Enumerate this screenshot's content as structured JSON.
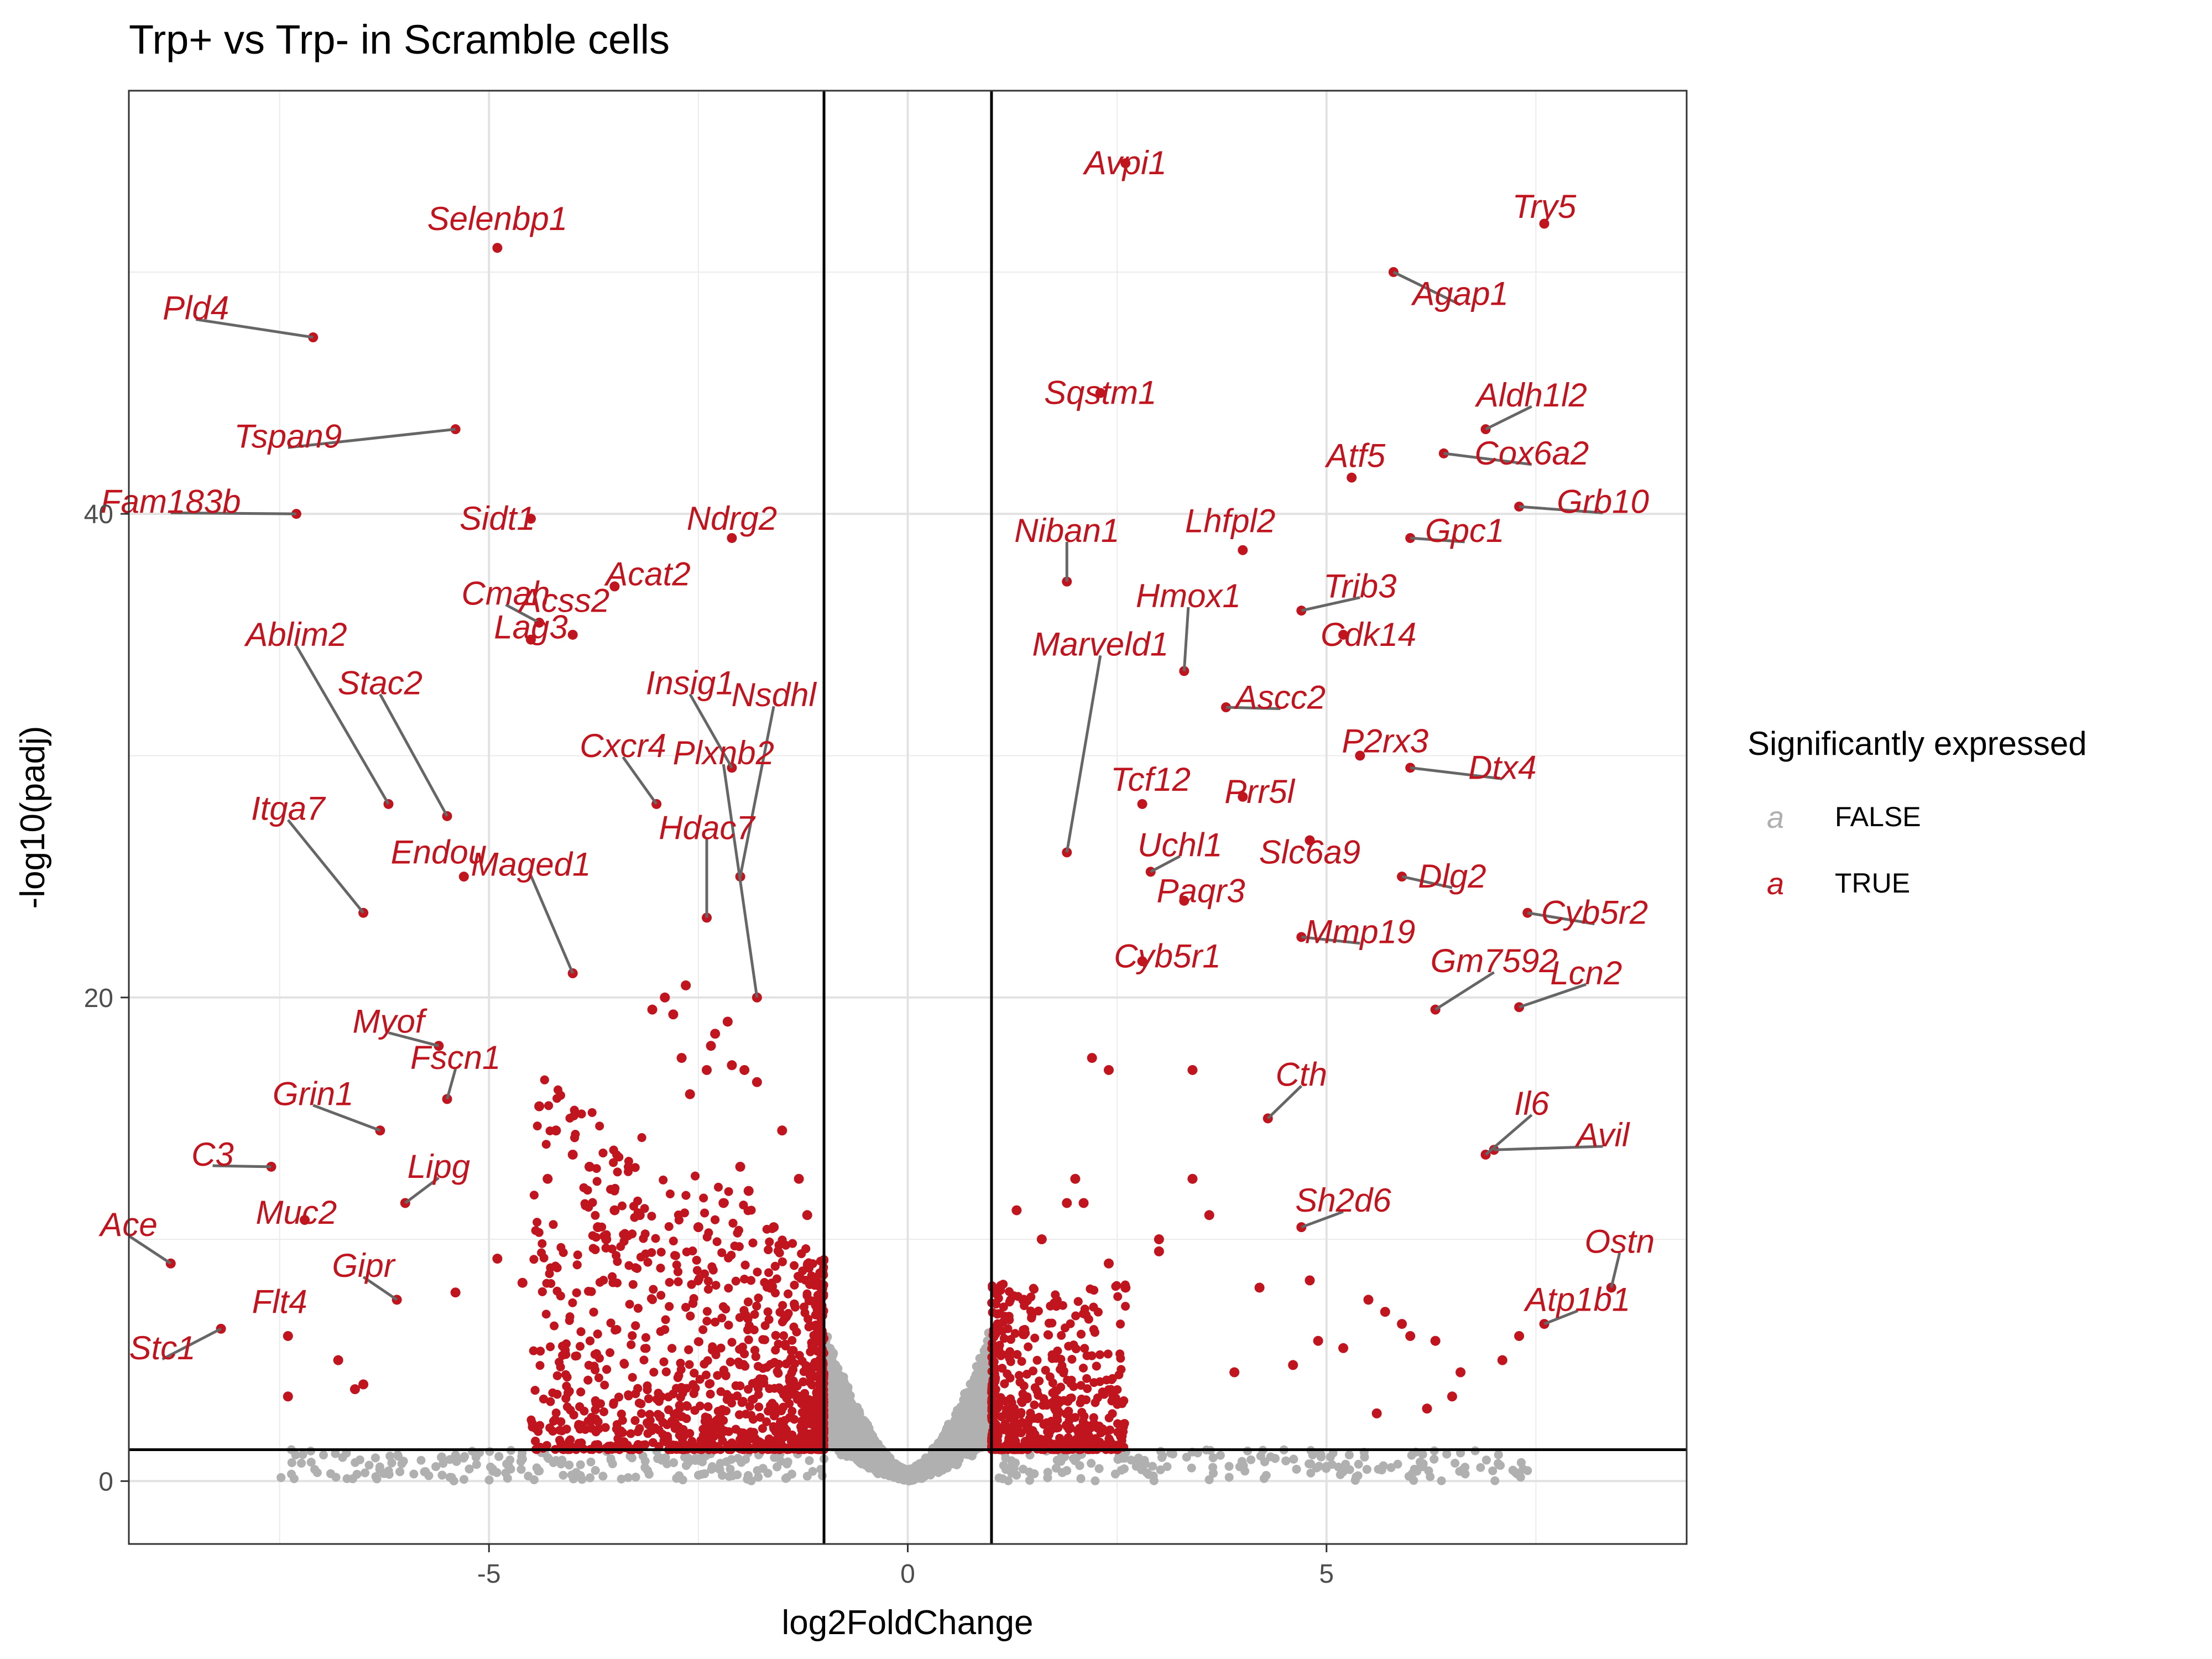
{
  "chart_data": {
    "type": "scatter",
    "title": "Trp+ vs Trp- in Scramble cells",
    "xlabel": "log2FoldChange",
    "ylabel": "-log10(padj)",
    "xlim": [
      -9.3,
      9.3
    ],
    "ylim": [
      -2.6,
      57.5
    ],
    "x_ticks": [
      -5,
      0,
      5
    ],
    "y_ticks": [
      0,
      20,
      40
    ],
    "grid": true,
    "thresholds": {
      "log2fc": [
        -1,
        1
      ],
      "neg_log10_padj": 1.3
    },
    "legend": {
      "title": "Significantly expressed",
      "placement": "right",
      "entries": [
        {
          "label": "FALSE",
          "color": "#b0b0b0",
          "key": "a"
        },
        {
          "label": "TRUE",
          "color": "#c0141f",
          "key": "a"
        }
      ]
    },
    "colors": {
      "significant": "#c0141f",
      "not_significant": "#b0b0b0",
      "connector": "#666666"
    },
    "labeled_genes": [
      {
        "gene": "Avpi1",
        "x": 2.6,
        "y": 54.5,
        "label_x": 2.6,
        "label_y": 54.5
      },
      {
        "gene": "Selenbp1",
        "x": -4.9,
        "y": 51.0,
        "label_x": -4.9,
        "label_y": 52.2
      },
      {
        "gene": "Try5",
        "x": 7.6,
        "y": 52.0,
        "label_x": 7.6,
        "label_y": 52.7
      },
      {
        "gene": "Agap1",
        "x": 5.8,
        "y": 50.0,
        "label_x": 6.6,
        "label_y": 49.1
      },
      {
        "gene": "Pld4",
        "x": -7.1,
        "y": 47.3,
        "label_x": -8.5,
        "label_y": 48.5
      },
      {
        "gene": "Sqstm1",
        "x": 2.3,
        "y": 45.0,
        "label_x": 2.3,
        "label_y": 45.0
      },
      {
        "gene": "Aldh1l2",
        "x": 6.9,
        "y": 43.5,
        "label_x": 7.45,
        "label_y": 44.9
      },
      {
        "gene": "Tspan9",
        "x": -5.4,
        "y": 43.5,
        "label_x": -7.4,
        "label_y": 43.2
      },
      {
        "gene": "Atf5",
        "x": 5.3,
        "y": 41.5,
        "label_x": 5.35,
        "label_y": 42.4
      },
      {
        "gene": "Cox6a2",
        "x": 6.4,
        "y": 42.5,
        "label_x": 7.45,
        "label_y": 42.5
      },
      {
        "gene": "Fam183b",
        "x": -7.3,
        "y": 40.0,
        "label_x": -8.8,
        "label_y": 40.5
      },
      {
        "gene": "Grb10",
        "x": 7.3,
        "y": 40.3,
        "label_x": 8.3,
        "label_y": 40.5
      },
      {
        "gene": "Sidt1",
        "x": -4.5,
        "y": 39.8,
        "label_x": -4.9,
        "label_y": 39.8
      },
      {
        "gene": "Ndrg2",
        "x": -2.1,
        "y": 39.0,
        "label_x": -2.1,
        "label_y": 39.8
      },
      {
        "gene": "Niban1",
        "x": 1.9,
        "y": 37.2,
        "label_x": 1.9,
        "label_y": 39.3
      },
      {
        "gene": "Lhfpl2",
        "x": 4.0,
        "y": 38.5,
        "label_x": 3.85,
        "label_y": 39.7
      },
      {
        "gene": "Gpc1",
        "x": 6.0,
        "y": 39.0,
        "label_x": 6.65,
        "label_y": 39.3
      },
      {
        "gene": "Acat2",
        "x": -3.5,
        "y": 37.0,
        "label_x": -3.1,
        "label_y": 37.5
      },
      {
        "gene": "Cmah",
        "x": -4.4,
        "y": 35.5,
        "label_x": -4.8,
        "label_y": 36.7
      },
      {
        "gene": "Acss2",
        "x": -4.0,
        "y": 35.0,
        "label_x": -4.1,
        "label_y": 36.4
      },
      {
        "gene": "Hmox1",
        "x": 3.3,
        "y": 33.5,
        "label_x": 3.35,
        "label_y": 36.6
      },
      {
        "gene": "Trib3",
        "x": 4.7,
        "y": 36.0,
        "label_x": 5.4,
        "label_y": 37.0
      },
      {
        "gene": "Lag3",
        "x": -4.5,
        "y": 34.8,
        "label_x": -4.5,
        "label_y": 35.3
      },
      {
        "gene": "Ablim2",
        "x": -6.2,
        "y": 28.0,
        "label_x": -7.3,
        "label_y": 35.0
      },
      {
        "gene": "Cdk14",
        "x": 5.2,
        "y": 35.0,
        "label_x": 5.5,
        "label_y": 35.0
      },
      {
        "gene": "Marveld1",
        "x": 1.9,
        "y": 26.0,
        "label_x": 2.3,
        "label_y": 34.6
      },
      {
        "gene": "Stac2",
        "x": -5.5,
        "y": 27.5,
        "label_x": -6.3,
        "label_y": 33.0
      },
      {
        "gene": "Insig1",
        "x": -2.1,
        "y": 29.5,
        "label_x": -2.6,
        "label_y": 33.0
      },
      {
        "gene": "Nsdhl",
        "x": -2.0,
        "y": 25.0,
        "label_x": -1.6,
        "label_y": 32.5
      },
      {
        "gene": "Ascc2",
        "x": 3.8,
        "y": 32.0,
        "label_x": 4.45,
        "label_y": 32.4
      },
      {
        "gene": "P2rx3",
        "x": 5.4,
        "y": 30.0,
        "label_x": 5.7,
        "label_y": 30.6
      },
      {
        "gene": "Cxcr4",
        "x": -3.0,
        "y": 28.0,
        "label_x": -3.4,
        "label_y": 30.4
      },
      {
        "gene": "Plxnb2",
        "x": -1.8,
        "y": 20.0,
        "label_x": -2.2,
        "label_y": 30.1
      },
      {
        "gene": "Dtx4",
        "x": 6.0,
        "y": 29.5,
        "label_x": 7.1,
        "label_y": 29.5
      },
      {
        "gene": "Tcf12",
        "x": 2.8,
        "y": 28.0,
        "label_x": 2.9,
        "label_y": 29.0
      },
      {
        "gene": "Prr5l",
        "x": 4.0,
        "y": 28.3,
        "label_x": 4.2,
        "label_y": 28.5
      },
      {
        "gene": "Itga7",
        "x": -6.5,
        "y": 23.5,
        "label_x": -7.4,
        "label_y": 27.8
      },
      {
        "gene": "Hdac7",
        "x": -2.4,
        "y": 23.3,
        "label_x": -2.4,
        "label_y": 27.0
      },
      {
        "gene": "Uchl1",
        "x": 2.9,
        "y": 25.2,
        "label_x": 3.25,
        "label_y": 26.3
      },
      {
        "gene": "Endou",
        "x": -5.3,
        "y": 25.0,
        "label_x": -5.6,
        "label_y": 26.0
      },
      {
        "gene": "Slc6a9",
        "x": 4.8,
        "y": 26.5,
        "label_x": 4.8,
        "label_y": 26.0
      },
      {
        "gene": "Maged1",
        "x": -4.0,
        "y": 21.0,
        "label_x": -4.5,
        "label_y": 25.5
      },
      {
        "gene": "Dlg2",
        "x": 5.9,
        "y": 25.0,
        "label_x": 6.5,
        "label_y": 25.0
      },
      {
        "gene": "Paqr3",
        "x": 3.3,
        "y": 24.0,
        "label_x": 3.5,
        "label_y": 24.4
      },
      {
        "gene": "Cyb5r2",
        "x": 7.4,
        "y": 23.5,
        "label_x": 8.2,
        "label_y": 23.5
      },
      {
        "gene": "Mmp19",
        "x": 4.7,
        "y": 22.5,
        "label_x": 5.4,
        "label_y": 22.7
      },
      {
        "gene": "Cyb5r1",
        "x": 2.8,
        "y": 21.5,
        "label_x": 3.1,
        "label_y": 21.7
      },
      {
        "gene": "Gm7592",
        "x": 6.3,
        "y": 19.5,
        "label_x": 7.0,
        "label_y": 21.5
      },
      {
        "gene": "Lcn2",
        "x": 7.3,
        "y": 19.6,
        "label_x": 8.1,
        "label_y": 21.0
      },
      {
        "gene": "Myof",
        "x": -5.6,
        "y": 18.0,
        "label_x": -6.2,
        "label_y": 19.0
      },
      {
        "gene": "Fscn1",
        "x": -5.5,
        "y": 15.8,
        "label_x": -5.4,
        "label_y": 17.5
      },
      {
        "gene": "Grin1",
        "x": -6.3,
        "y": 14.5,
        "label_x": -7.1,
        "label_y": 16.0
      },
      {
        "gene": "Cth",
        "x": 4.3,
        "y": 15.0,
        "label_x": 4.7,
        "label_y": 16.8
      },
      {
        "gene": "Il6",
        "x": 6.9,
        "y": 13.5,
        "label_x": 7.45,
        "label_y": 15.6
      },
      {
        "gene": "Avil",
        "x": 7.0,
        "y": 13.7,
        "label_x": 8.3,
        "label_y": 14.3
      },
      {
        "gene": "C3",
        "x": -7.6,
        "y": 13.0,
        "label_x": -8.3,
        "label_y": 13.5
      },
      {
        "gene": "Lipg",
        "x": -6.0,
        "y": 11.5,
        "label_x": -5.6,
        "label_y": 13.0
      },
      {
        "gene": "Sh2d6",
        "x": 4.7,
        "y": 10.5,
        "label_x": 5.2,
        "label_y": 11.6
      },
      {
        "gene": "Ace",
        "x": -8.8,
        "y": 9.0,
        "label_x": -9.3,
        "label_y": 10.6
      },
      {
        "gene": "Muc2",
        "x": -7.2,
        "y": 10.8,
        "label_x": -7.3,
        "label_y": 11.1
      },
      {
        "gene": "Ostn",
        "x": 8.4,
        "y": 8.0,
        "label_x": 8.5,
        "label_y": 9.9
      },
      {
        "gene": "Gipr",
        "x": -6.1,
        "y": 7.5,
        "label_x": -6.5,
        "label_y": 8.9
      },
      {
        "gene": "Atp1b1",
        "x": 7.6,
        "y": 6.5,
        "label_x": 8.0,
        "label_y": 7.5
      },
      {
        "gene": "Flt4",
        "x": -7.4,
        "y": 6.0,
        "label_x": -7.5,
        "label_y": 7.4
      },
      {
        "gene": "Stc1",
        "x": -8.2,
        "y": 6.3,
        "label_x": -8.9,
        "label_y": 5.5
      }
    ],
    "extra_points": [
      {
        "x": -4.4,
        "y": 15.5
      },
      {
        "x": -4.2,
        "y": 14.5
      },
      {
        "x": -4.0,
        "y": 13.5
      },
      {
        "x": -4.3,
        "y": 12.5
      },
      {
        "x": -3.8,
        "y": 13.0
      },
      {
        "x": -3.7,
        "y": 10.5
      },
      {
        "x": -3.5,
        "y": 11.2
      },
      {
        "x": -3.6,
        "y": 10.0
      },
      {
        "x": -3.2,
        "y": 11.0
      },
      {
        "x": -2.5,
        "y": 10.5
      },
      {
        "x": -2.2,
        "y": 11.5
      },
      {
        "x": -2.0,
        "y": 13.0
      },
      {
        "x": -1.9,
        "y": 12.0
      },
      {
        "x": -1.6,
        "y": 10.5
      },
      {
        "x": -2.6,
        "y": 16.0
      },
      {
        "x": -2.4,
        "y": 17.0
      },
      {
        "x": -2.1,
        "y": 17.2
      },
      {
        "x": -1.95,
        "y": 17.0
      },
      {
        "x": -1.8,
        "y": 16.5
      },
      {
        "x": -2.7,
        "y": 17.5
      },
      {
        "x": -2.3,
        "y": 18.5
      },
      {
        "x": -2.15,
        "y": 19.0
      },
      {
        "x": -2.8,
        "y": 19.3
      },
      {
        "x": -2.65,
        "y": 20.5
      },
      {
        "x": -2.35,
        "y": 18.0
      },
      {
        "x": -3.05,
        "y": 19.5
      },
      {
        "x": -2.9,
        "y": 20.0
      },
      {
        "x": -1.5,
        "y": 14.5
      },
      {
        "x": -1.3,
        "y": 12.5
      },
      {
        "x": -1.2,
        "y": 11.0
      },
      {
        "x": -4.9,
        "y": 9.2
      },
      {
        "x": -4.6,
        "y": 8.2
      },
      {
        "x": -5.4,
        "y": 7.8
      },
      {
        "x": -6.8,
        "y": 5.0
      },
      {
        "x": -6.5,
        "y": 4.0
      },
      {
        "x": -7.4,
        "y": 3.5
      },
      {
        "x": -6.6,
        "y": 3.8
      },
      {
        "x": 1.3,
        "y": 11.2
      },
      {
        "x": 1.6,
        "y": 10.0
      },
      {
        "x": 1.9,
        "y": 11.5
      },
      {
        "x": 2.0,
        "y": 12.5
      },
      {
        "x": 2.1,
        "y": 11.5
      },
      {
        "x": 2.4,
        "y": 9.0
      },
      {
        "x": 2.6,
        "y": 8.0
      },
      {
        "x": 3.0,
        "y": 9.5
      },
      {
        "x": 3.4,
        "y": 12.5
      },
      {
        "x": 3.6,
        "y": 11.0
      },
      {
        "x": 3.0,
        "y": 10.0
      },
      {
        "x": 2.4,
        "y": 17.0
      },
      {
        "x": 2.2,
        "y": 17.5
      },
      {
        "x": 3.4,
        "y": 17.0
      },
      {
        "x": 4.2,
        "y": 8.0
      },
      {
        "x": 4.8,
        "y": 8.3
      },
      {
        "x": 5.5,
        "y": 7.5
      },
      {
        "x": 5.7,
        "y": 7.0
      },
      {
        "x": 5.9,
        "y": 6.5
      },
      {
        "x": 6.0,
        "y": 6.0
      },
      {
        "x": 6.3,
        "y": 5.8
      },
      {
        "x": 5.2,
        "y": 5.5
      },
      {
        "x": 4.9,
        "y": 5.8
      },
      {
        "x": 6.6,
        "y": 4.5
      },
      {
        "x": 7.1,
        "y": 5.0
      },
      {
        "x": 7.3,
        "y": 6.0
      },
      {
        "x": 3.9,
        "y": 4.5
      },
      {
        "x": 4.6,
        "y": 4.8
      },
      {
        "x": 5.6,
        "y": 2.8
      },
      {
        "x": 6.2,
        "y": 3.0
      },
      {
        "x": 6.5,
        "y": 3.5
      }
    ]
  }
}
